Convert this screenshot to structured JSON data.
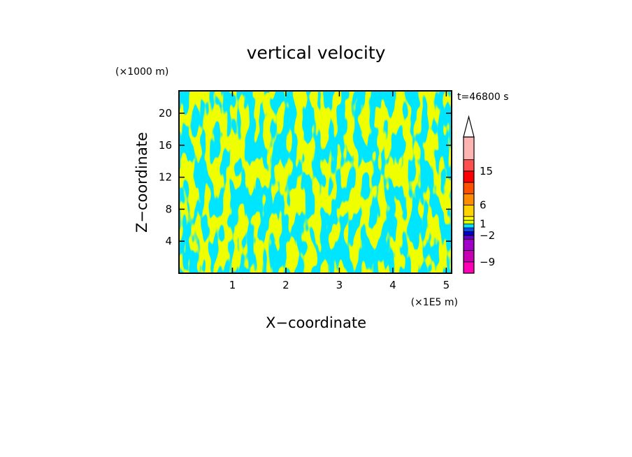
{
  "chart_data": {
    "type": "heatmap",
    "title": "vertical velocity",
    "time_label": "t=46800 s",
    "xlabel": "X−coordinate",
    "ylabel": "Z−coordinate",
    "x_unit": "(×1E5 m)",
    "y_unit": "(×1000 m)",
    "xlim": [
      0,
      5.1
    ],
    "ylim": [
      0,
      22.8
    ],
    "x_ticks": [
      1,
      2,
      3,
      4,
      5
    ],
    "y_ticks": [
      4,
      8,
      12,
      16,
      20
    ],
    "x_tick_labels": [
      "1",
      "2",
      "3",
      "4",
      "5"
    ],
    "y_tick_labels": [
      "4",
      "8",
      "12",
      "16",
      "20"
    ],
    "dominant_levels": [
      {
        "range": "-1 to 0",
        "color": "#00e5ff"
      },
      {
        "range": "0 to 1",
        "color": "#dcff00"
      }
    ],
    "colorbar": {
      "levels": [
        -12,
        -9,
        -6,
        -3,
        -2,
        -1,
        0,
        1,
        2,
        3,
        6,
        9,
        12,
        15,
        18,
        24
      ],
      "colors": [
        "#ff00b4",
        "#c800b4",
        "#a000c8",
        "#6400c8",
        "#0000c8",
        "#0050ff",
        "#00e5ff",
        "#dcff00",
        "#ffff00",
        "#ffd200",
        "#ff8c00",
        "#ff5000",
        "#ff0000",
        "#ff5050",
        "#ffb4b4"
      ],
      "extend": "max",
      "tick_labels": [
        {
          "value": -9,
          "text": "−9"
        },
        {
          "value": -2,
          "text": "−2"
        },
        {
          "value": 1,
          "text": "1"
        },
        {
          "value": 6,
          "text": "6"
        },
        {
          "value": 15,
          "text": "15"
        }
      ]
    }
  }
}
